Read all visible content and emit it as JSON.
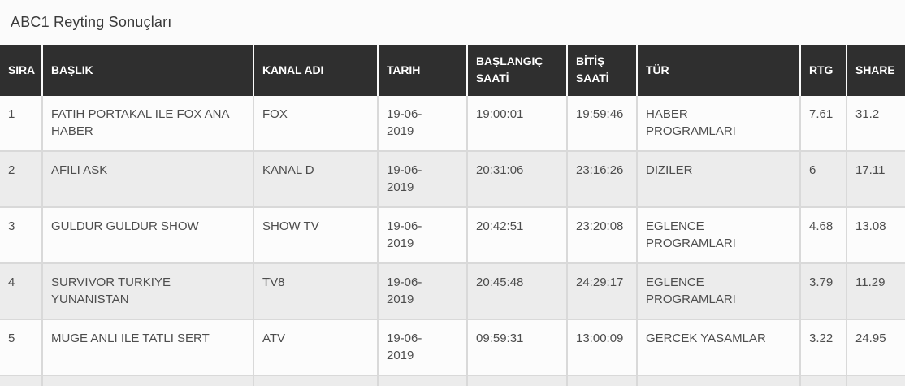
{
  "page": {
    "title": "ABC1 Reyting Sonuçları"
  },
  "colors": {
    "header_bg": "#2f2f2f",
    "header_text": "#ffffff",
    "row_bg": "#fcfcfc",
    "row_alt_bg": "#ececec",
    "border": "#d9d9d9",
    "body_text": "#4d4d4d",
    "page_bg": "#fbfbfb"
  },
  "table": {
    "columns": [
      {
        "key": "sira",
        "label": "SIRA"
      },
      {
        "key": "baslik",
        "label": "BAŞLIK"
      },
      {
        "key": "kanal",
        "label": "KANAL ADI"
      },
      {
        "key": "tarih",
        "label": "TARIH"
      },
      {
        "key": "baslangic",
        "label": "BAŞLANGIÇ SAATİ"
      },
      {
        "key": "bitis",
        "label": "BİTİŞ SAATİ"
      },
      {
        "key": "tur",
        "label": "TÜR"
      },
      {
        "key": "rtg",
        "label": "RTG"
      },
      {
        "key": "share",
        "label": "SHARE"
      }
    ],
    "rows": [
      {
        "sira": "1",
        "baslik": "FATIH PORTAKAL ILE FOX ANA HABER",
        "kanal": "FOX",
        "tarih": "19-06-2019",
        "baslangic": "19:00:01",
        "bitis": "19:59:46",
        "tur": "HABER PROGRAMLARI",
        "rtg": "7.61",
        "share": "31.2"
      },
      {
        "sira": "2",
        "baslik": "AFILI ASK",
        "kanal": "KANAL D",
        "tarih": "19-06-2019",
        "baslangic": "20:31:06",
        "bitis": "23:16:26",
        "tur": "DIZILER",
        "rtg": "6",
        "share": "17.11"
      },
      {
        "sira": "3",
        "baslik": "GULDUR GULDUR SHOW",
        "kanal": "SHOW TV",
        "tarih": "19-06-2019",
        "baslangic": "20:42:51",
        "bitis": "23:20:08",
        "tur": "EGLENCE PROGRAMLARI",
        "rtg": "4.68",
        "share": "13.08"
      },
      {
        "sira": "4",
        "baslik": "SURVIVOR TURKIYE YUNANISTAN",
        "kanal": "TV8",
        "tarih": "19-06-2019",
        "baslangic": "20:45:48",
        "bitis": "24:29:17",
        "tur": "EGLENCE PROGRAMLARI",
        "rtg": "3.79",
        "share": "11.29"
      },
      {
        "sira": "5",
        "baslik": "MUGE ANLI ILE TATLI SERT",
        "kanal": "ATV",
        "tarih": "19-06-2019",
        "baslangic": "09:59:31",
        "bitis": "13:00:09",
        "tur": "GERCEK YASAMLAR",
        "rtg": "3.22",
        "share": "24.95"
      },
      {
        "sira": "",
        "baslik": "",
        "kanal": "",
        "tarih": "",
        "baslangic": "",
        "bitis": "",
        "tur": "",
        "rtg": "",
        "share": "",
        "partial": true
      }
    ]
  }
}
